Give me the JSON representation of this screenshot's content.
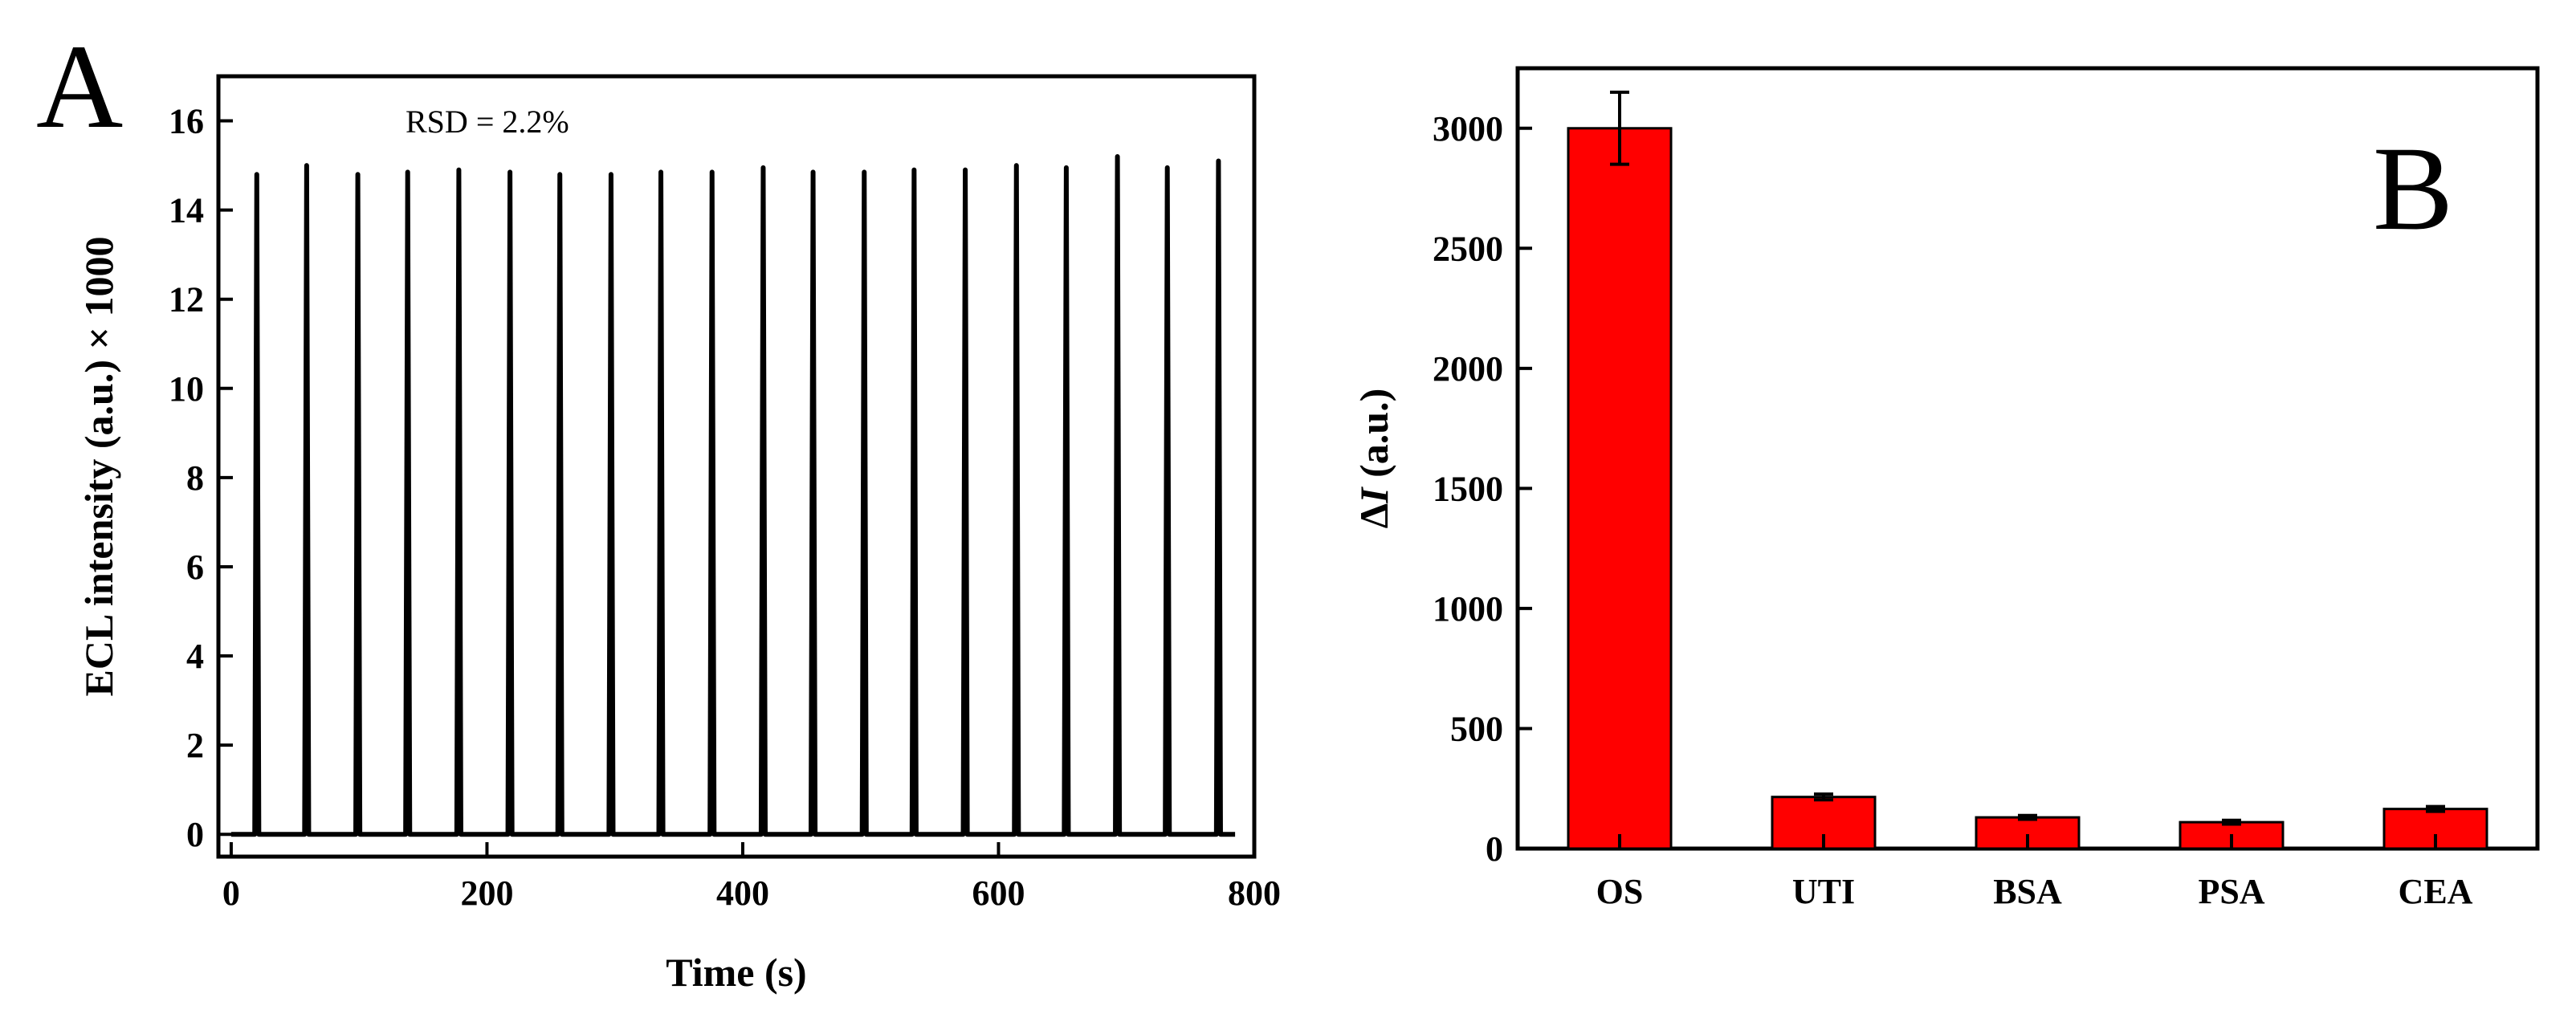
{
  "chart_data": [
    {
      "panel_label": "A",
      "type": "line",
      "xlabel": "Time (s)",
      "ylabel": "ECL intensity (a.u.) × 1000",
      "xlim": [
        -10,
        800
      ],
      "ylim": [
        -0.5,
        17
      ],
      "xticks": [
        "0",
        "200",
        "400",
        "600",
        "800"
      ],
      "yticks": [
        "0",
        "2",
        "4",
        "6",
        "8",
        "10",
        "12",
        "14",
        "16"
      ],
      "annotation": "RSD = 2.2%",
      "series": [
        {
          "color": "#000000",
          "peak_times": [
            20,
            59,
            99,
            138,
            178,
            218,
            257,
            297,
            336,
            376,
            416,
            455,
            495,
            534,
            574,
            614,
            653,
            693,
            732,
            772
          ],
          "peak_heights": [
            14.8,
            15.0,
            14.8,
            14.85,
            14.9,
            14.85,
            14.8,
            14.8,
            14.85,
            14.85,
            14.95,
            14.85,
            14.85,
            14.9,
            14.9,
            15.0,
            14.95,
            15.2,
            14.95,
            15.1
          ],
          "baseline": 0
        }
      ],
      "grid": false
    },
    {
      "panel_label": "B",
      "type": "bar",
      "xlabel": "",
      "ylabel": "ΔI (a.u.)",
      "ylabel_symbol": "Δ",
      "ylabel_var": "I",
      "ylabel_unit": " (a.u.)",
      "ylim": [
        0,
        3250
      ],
      "yticks": [
        "0",
        "500",
        "1000",
        "1500",
        "2000",
        "2500",
        "3000"
      ],
      "categories": [
        "OS",
        "UTI",
        "BSA",
        "PSA",
        "CEA"
      ],
      "values": [
        3000,
        215,
        130,
        110,
        165
      ],
      "errors": [
        150,
        12,
        8,
        8,
        10
      ],
      "bar_color": "#ff0000",
      "grid": false
    }
  ]
}
